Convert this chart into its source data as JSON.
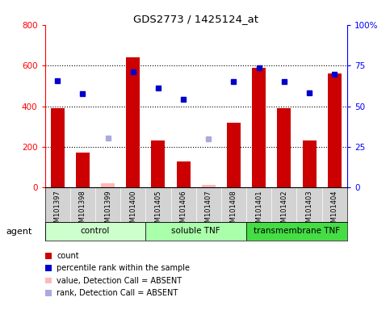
{
  "title": "GDS2773 / 1425124_at",
  "samples": [
    "GSM101397",
    "GSM101398",
    "GSM101399",
    "GSM101400",
    "GSM101405",
    "GSM101406",
    "GSM101407",
    "GSM101408",
    "GSM101401",
    "GSM101402",
    "GSM101403",
    "GSM101404"
  ],
  "bar_values": [
    390,
    170,
    null,
    640,
    230,
    130,
    null,
    320,
    590,
    390,
    230,
    560
  ],
  "bar_absent_values": [
    null,
    null,
    20,
    null,
    null,
    null,
    15,
    null,
    null,
    null,
    null,
    null
  ],
  "percentile_values": [
    525,
    460,
    null,
    570,
    490,
    435,
    null,
    520,
    590,
    520,
    465,
    555
  ],
  "percentile_absent_values": [
    null,
    null,
    245,
    null,
    null,
    null,
    240,
    null,
    null,
    null,
    null,
    null
  ],
  "bar_color": "#cc0000",
  "bar_absent_color": "#ffb8b8",
  "percentile_color": "#0000cc",
  "percentile_absent_color": "#aaaadd",
  "ylim_left": [
    0,
    800
  ],
  "ylim_right": [
    0,
    100
  ],
  "yticks_left": [
    0,
    200,
    400,
    600,
    800
  ],
  "yticks_right": [
    0,
    25,
    50,
    75,
    100
  ],
  "ytick_right_labels": [
    "0",
    "25",
    "50",
    "75",
    "100%"
  ],
  "groups": [
    {
      "label": "control",
      "start": 0,
      "end": 4,
      "color": "#ccffcc"
    },
    {
      "label": "soluble TNF",
      "start": 4,
      "end": 8,
      "color": "#aaffaa"
    },
    {
      "label": "transmembrane TNF",
      "start": 8,
      "end": 12,
      "color": "#44dd44"
    }
  ],
  "legend_items": [
    {
      "label": "count",
      "color": "#cc0000"
    },
    {
      "label": "percentile rank within the sample",
      "color": "#0000cc"
    },
    {
      "label": "value, Detection Call = ABSENT",
      "color": "#ffb8b8"
    },
    {
      "label": "rank, Detection Call = ABSENT",
      "color": "#aaaadd"
    }
  ],
  "agent_label": "agent",
  "bar_width": 0.55,
  "tick_area_color": "#d3d3d3"
}
